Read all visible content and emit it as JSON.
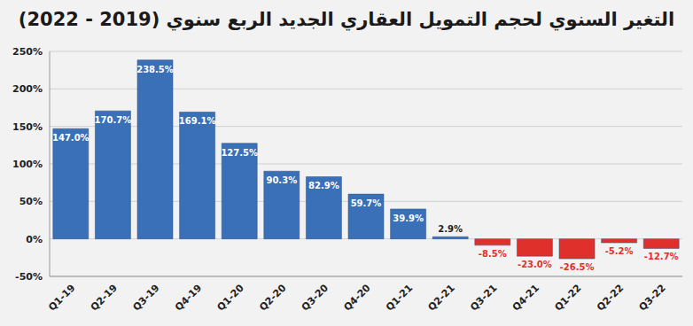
{
  "chart_data": {
    "type": "bar",
    "title": "التغير السنوي لحجم التمويل العقاري الجديد الربع سنوي (2019 - 2022)",
    "categories": [
      "Q1-19",
      "Q2-19",
      "Q3-19",
      "Q4-19",
      "Q1-20",
      "Q2-20",
      "Q3-20",
      "Q4-20",
      "Q1-21",
      "Q2-21",
      "Q3-21",
      "Q4-21",
      "Q1-22",
      "Q2-22",
      "Q3-22"
    ],
    "values": [
      147.0,
      170.7,
      238.5,
      169.1,
      127.5,
      90.3,
      82.9,
      59.7,
      39.9,
      2.9,
      -8.5,
      -23.0,
      -26.5,
      -5.2,
      -12.7
    ],
    "value_labels": [
      "147.0%",
      "170.7%",
      "238.5%",
      "169.1%",
      "127.5%",
      "90.3%",
      "82.9%",
      "59.7%",
      "39.9%",
      "2.9%",
      "-8.5%",
      "-23.0%",
      "-26.5%",
      "-5.2%",
      "-12.7%"
    ],
    "colors": [
      "#3a70b8",
      "#3a70b8",
      "#3a70b8",
      "#3a70b8",
      "#3a70b8",
      "#3a70b8",
      "#3a70b8",
      "#3a70b8",
      "#3a70b8",
      "#3a70b8",
      "#e0302c",
      "#e0302c",
      "#e0302c",
      "#e0302c",
      "#e0302c"
    ],
    "ylim": [
      -50,
      250
    ],
    "yticks": [
      {
        "value": -50,
        "label": "-50%"
      },
      {
        "value": 0,
        "label": "0%"
      },
      {
        "value": 50,
        "label": "50%"
      },
      {
        "value": 100,
        "label": "100%"
      },
      {
        "value": 150,
        "label": "150%"
      },
      {
        "value": 200,
        "label": "200%"
      },
      {
        "value": 250,
        "label": "250%"
      }
    ],
    "grid": true,
    "data_labels": true
  }
}
